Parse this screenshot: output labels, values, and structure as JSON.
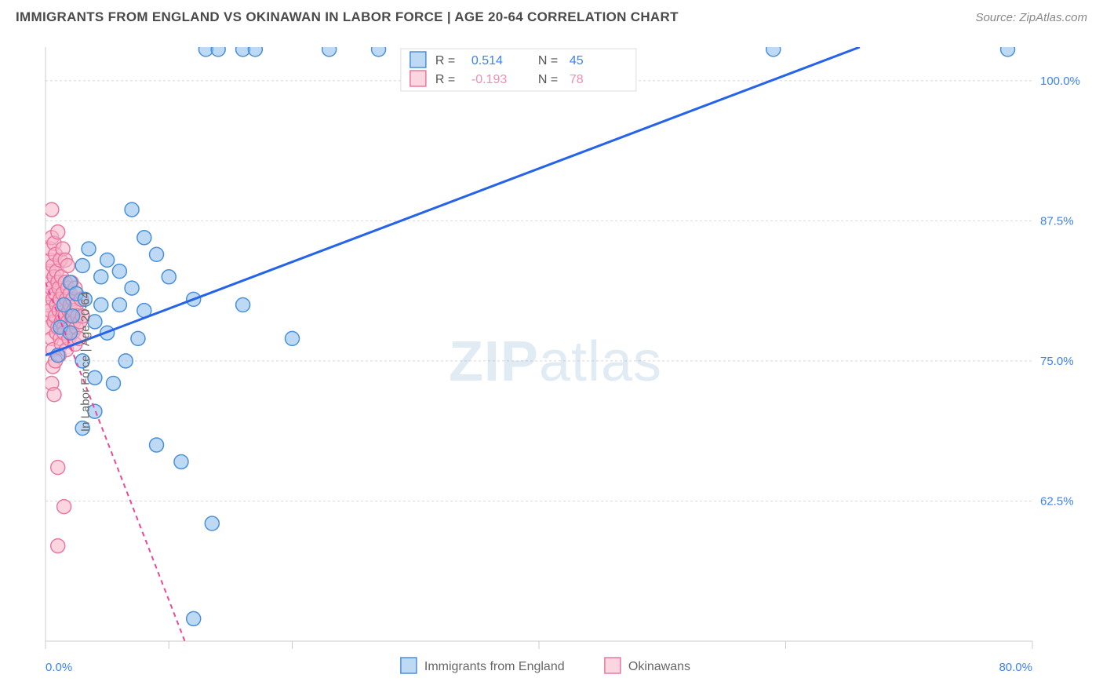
{
  "title": "IMMIGRANTS FROM ENGLAND VS OKINAWAN IN LABOR FORCE | AGE 20-64 CORRELATION CHART",
  "source": "Source: ZipAtlas.com",
  "watermark": {
    "part1": "ZIP",
    "part2": "atlas"
  },
  "chart": {
    "type": "scatter",
    "ylabel": "In Labor Force | Age 20-64",
    "xlim": [
      0,
      80
    ],
    "ylim": [
      50,
      103
    ],
    "x_ticks": [
      0,
      10,
      20,
      40,
      60,
      80
    ],
    "x_tick_labels": [
      "0.0%",
      "",
      "",
      "",
      "",
      "80.0%"
    ],
    "y_ticks": [
      62.5,
      75.0,
      87.5,
      100.0
    ],
    "y_tick_labels": [
      "62.5%",
      "75.0%",
      "87.5%",
      "100.0%"
    ],
    "gridline_color": "#d8d8d8",
    "gridline_dash": "3,3",
    "axis_line_color": "#cccccc",
    "tick_label_color": "#3b82f6",
    "tick_label_fontsize": 15,
    "background_color": "#ffffff",
    "legend_top": {
      "series1": {
        "r_label": "R =",
        "r_value": "0.514",
        "n_label": "N =",
        "n_value": "45",
        "color": "#3b82f6"
      },
      "series2": {
        "r_label": "R =",
        "r_value": "-0.193",
        "n_label": "N =",
        "n_value": "78",
        "color": "#f08db0"
      }
    },
    "legend_bottom": {
      "series1_label": "Immigrants from England",
      "series2_label": "Okinawans",
      "text_color": "#666666"
    },
    "series1": {
      "name": "Immigrants from England",
      "marker_fill": "rgba(135, 185, 235, 0.55)",
      "marker_stroke": "#4a90d9",
      "marker_radius": 9,
      "trend_line_color": "#2563eb",
      "trend_line_width": 3,
      "trend_line_dash": "none",
      "trend_start": [
        0,
        75.5
      ],
      "trend_end": [
        66,
        103
      ],
      "legend_swatch_fill": "rgba(135, 185, 235, 0.55)",
      "legend_swatch_stroke": "#4a90d9",
      "points": [
        [
          1.0,
          75.5
        ],
        [
          1.2,
          78.0
        ],
        [
          1.5,
          80.0
        ],
        [
          2.0,
          77.5
        ],
        [
          2.0,
          82.0
        ],
        [
          2.2,
          79.0
        ],
        [
          2.5,
          81.0
        ],
        [
          3.0,
          75.0
        ],
        [
          3.0,
          83.5
        ],
        [
          3.2,
          80.5
        ],
        [
          3.5,
          85.0
        ],
        [
          4.0,
          78.5
        ],
        [
          4.0,
          73.5
        ],
        [
          4.5,
          82.5
        ],
        [
          4.5,
          80.0
        ],
        [
          5.0,
          77.5
        ],
        [
          5.0,
          84.0
        ],
        [
          5.5,
          73.0
        ],
        [
          6.0,
          80.0
        ],
        [
          6.0,
          83.0
        ],
        [
          6.5,
          75.0
        ],
        [
          7.0,
          88.5
        ],
        [
          7.0,
          81.5
        ],
        [
          7.5,
          77.0
        ],
        [
          8.0,
          86.0
        ],
        [
          8.0,
          79.5
        ],
        [
          9.0,
          84.5
        ],
        [
          9.0,
          67.5
        ],
        [
          10.0,
          82.5
        ],
        [
          11.0,
          66.0
        ],
        [
          12.0,
          80.5
        ],
        [
          13.5,
          60.5
        ],
        [
          16.0,
          80.0
        ],
        [
          20.0,
          77.0
        ],
        [
          27.0,
          102.8
        ],
        [
          13.0,
          102.8
        ],
        [
          14.0,
          102.8
        ],
        [
          16.0,
          102.8
        ],
        [
          17.0,
          102.8
        ],
        [
          23.0,
          102.8
        ],
        [
          59.0,
          102.8
        ],
        [
          78.0,
          102.8
        ],
        [
          3.0,
          69.0
        ],
        [
          4.0,
          70.5
        ],
        [
          12.0,
          52.0
        ]
      ]
    },
    "series2": {
      "name": "Okinawans",
      "marker_fill": "rgba(248, 180, 200, 0.55)",
      "marker_stroke": "#e878a0",
      "marker_radius": 9,
      "trend_line_color": "#ec4899",
      "trend_line_width": 2,
      "trend_line_dash": "6,5",
      "trend_start": [
        0,
        82.0
      ],
      "trend_end": [
        12,
        48
      ],
      "legend_swatch_fill": "rgba(248, 180, 200, 0.55)",
      "legend_swatch_stroke": "#e878a0",
      "points": [
        [
          0.2,
          79.0
        ],
        [
          0.2,
          80.0
        ],
        [
          0.2,
          81.0
        ],
        [
          0.3,
          82.0
        ],
        [
          0.3,
          83.0
        ],
        [
          0.3,
          78.0
        ],
        [
          0.4,
          84.0
        ],
        [
          0.4,
          79.5
        ],
        [
          0.4,
          85.0
        ],
        [
          0.5,
          77.0
        ],
        [
          0.5,
          81.5
        ],
        [
          0.5,
          86.0
        ],
        [
          0.5,
          88.5
        ],
        [
          0.6,
          80.5
        ],
        [
          0.6,
          83.5
        ],
        [
          0.6,
          76.0
        ],
        [
          0.7,
          82.5
        ],
        [
          0.7,
          78.5
        ],
        [
          0.7,
          85.5
        ],
        [
          0.8,
          79.0
        ],
        [
          0.8,
          81.0
        ],
        [
          0.8,
          84.5
        ],
        [
          0.9,
          77.5
        ],
        [
          0.9,
          80.0
        ],
        [
          0.9,
          83.0
        ],
        [
          1.0,
          78.0
        ],
        [
          1.0,
          82.0
        ],
        [
          1.0,
          86.5
        ],
        [
          1.1,
          79.5
        ],
        [
          1.1,
          81.5
        ],
        [
          1.1,
          75.5
        ],
        [
          1.2,
          80.5
        ],
        [
          1.2,
          84.0
        ],
        [
          1.2,
          77.0
        ],
        [
          1.3,
          78.5
        ],
        [
          1.3,
          82.5
        ],
        [
          1.3,
          76.5
        ],
        [
          1.4,
          79.0
        ],
        [
          1.4,
          81.0
        ],
        [
          1.4,
          85.0
        ],
        [
          1.5,
          80.0
        ],
        [
          1.5,
          78.0
        ],
        [
          1.5,
          77.5
        ],
        [
          1.6,
          84.0
        ],
        [
          1.6,
          79.0
        ],
        [
          1.6,
          82.0
        ],
        [
          1.7,
          80.5
        ],
        [
          1.7,
          76.0
        ],
        [
          1.8,
          78.5
        ],
        [
          1.8,
          81.5
        ],
        [
          1.8,
          83.5
        ],
        [
          1.9,
          79.5
        ],
        [
          1.9,
          77.0
        ],
        [
          2.0,
          80.0
        ],
        [
          2.0,
          78.0
        ],
        [
          2.0,
          81.0
        ],
        [
          2.1,
          79.0
        ],
        [
          2.1,
          82.0
        ],
        [
          2.2,
          77.5
        ],
        [
          2.2,
          80.5
        ],
        [
          2.3,
          78.5
        ],
        [
          2.3,
          79.5
        ],
        [
          2.4,
          81.5
        ],
        [
          2.4,
          76.5
        ],
        [
          2.5,
          78.0
        ],
        [
          2.5,
          80.0
        ],
        [
          2.6,
          79.0
        ],
        [
          2.7,
          77.0
        ],
        [
          2.8,
          78.5
        ],
        [
          2.9,
          80.5
        ],
        [
          3.0,
          79.0
        ],
        [
          0.5,
          73.0
        ],
        [
          0.6,
          74.5
        ],
        [
          0.7,
          72.0
        ],
        [
          0.8,
          75.0
        ],
        [
          1.0,
          65.5
        ],
        [
          1.5,
          62.0
        ],
        [
          1.0,
          58.5
        ]
      ]
    }
  }
}
